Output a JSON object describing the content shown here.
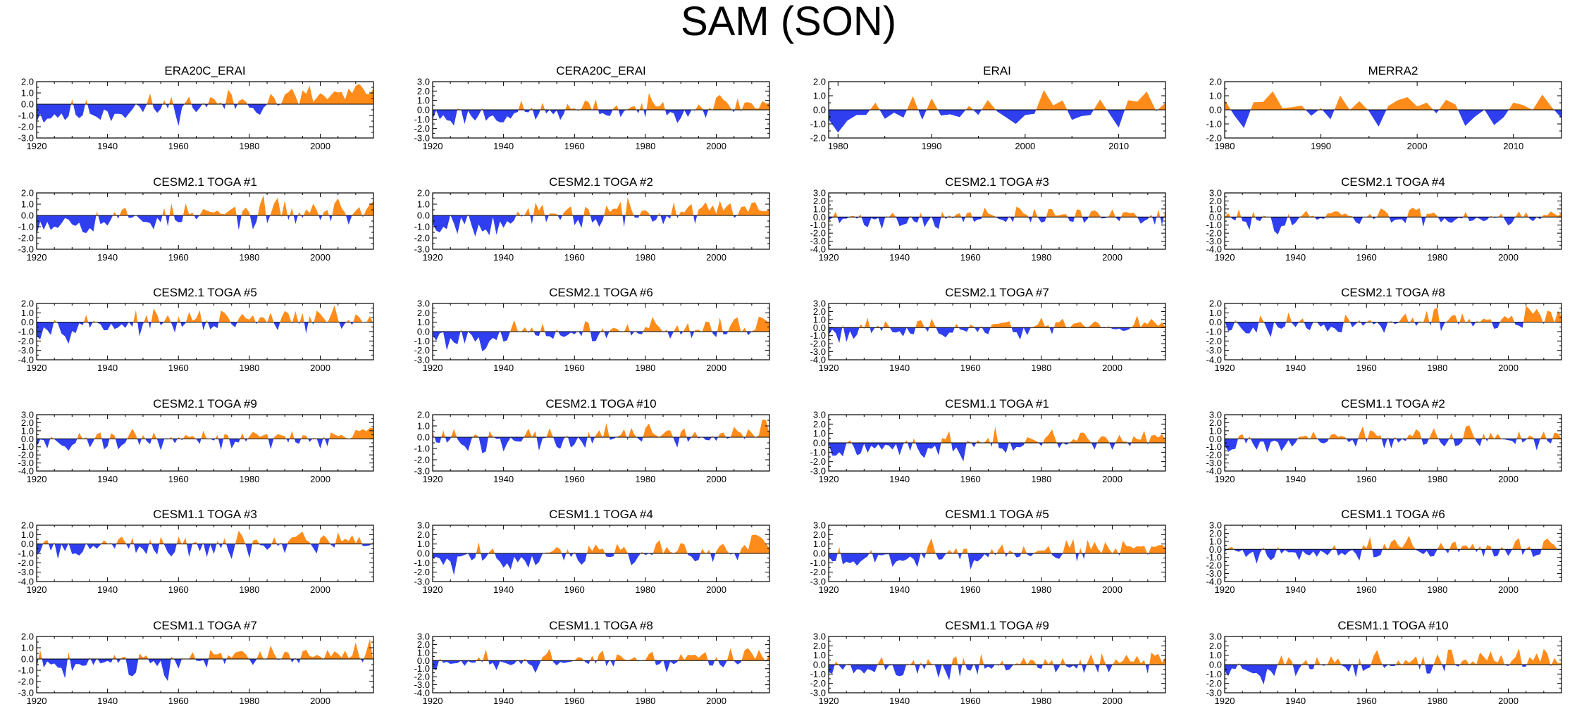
{
  "title": "SAM (SON)",
  "colors": {
    "positive": "#ff8c1a",
    "negative": "#2f3ff0",
    "axis": "#000000"
  },
  "chart_data": [
    {
      "type": "area",
      "title": "ERA20C_ERAI",
      "xlim": [
        1920,
        2015
      ],
      "x_ticks": [
        1920,
        1940,
        1960,
        1980,
        2000
      ],
      "y_ticks": [
        2.0,
        1.0,
        0.0,
        -1.0,
        -2.0,
        -3.0
      ],
      "ylim": [
        -3.0,
        2.0
      ],
      "y_tick_labels": [
        "2.0",
        "1.0",
        "0.0",
        "-1.0",
        "-2.0",
        "-3.0"
      ],
      "seed": 11,
      "bias": 0.8
    },
    {
      "type": "area",
      "title": "CERA20C_ERAI",
      "xlim": [
        1920,
        2015
      ],
      "x_ticks": [
        1920,
        1940,
        1960,
        1980,
        2000
      ],
      "y_ticks": [
        3.0,
        2.0,
        1.0,
        0.0,
        -1.0,
        -2.0,
        -3.0
      ],
      "ylim": [
        -3.0,
        3.0
      ],
      "y_tick_labels": [
        "3.0",
        "2.0",
        "1.0",
        "0.0",
        "-1.0",
        "-2.0",
        "-3.0"
      ],
      "seed": 23,
      "bias": 0.6
    },
    {
      "type": "area",
      "title": "ERAI",
      "xlim": [
        1979,
        2015
      ],
      "x_ticks": [
        1980,
        1990,
        2000,
        2010
      ],
      "y_ticks": [
        2.0,
        1.0,
        0.0,
        -1.0,
        -2.0
      ],
      "ylim": [
        -2.0,
        2.0
      ],
      "y_tick_labels": [
        "2.0",
        "1.0",
        "0.0",
        "-1.0",
        "-2.0"
      ],
      "seed": 37,
      "bias": 0.1
    },
    {
      "type": "area",
      "title": "MERRA2",
      "xlim": [
        1980,
        2015
      ],
      "x_ticks": [
        1980,
        1990,
        2000,
        2010
      ],
      "y_ticks": [
        2.0,
        1.0,
        0.0,
        -1.0,
        -2.0
      ],
      "ylim": [
        -2.0,
        2.0
      ],
      "y_tick_labels": [
        "2.0",
        "1.0",
        "0.0",
        "-1.0",
        "-2.0"
      ],
      "seed": 41,
      "bias": 0.1
    },
    {
      "type": "area",
      "title": "CESM2.1 TOGA #1",
      "xlim": [
        1920,
        2015
      ],
      "x_ticks": [
        1920,
        1940,
        1960,
        1980,
        2000
      ],
      "y_ticks": [
        2.0,
        1.0,
        0.0,
        -1.0,
        -2.0,
        -3.0
      ],
      "ylim": [
        -3.0,
        2.0
      ],
      "y_tick_labels": [
        "2.0",
        "1.0",
        "0.0",
        "-1.0",
        "-2.0",
        "-3.0"
      ],
      "seed": 53,
      "bias": 0.4
    },
    {
      "type": "area",
      "title": "CESM2.1 TOGA #2",
      "xlim": [
        1920,
        2015
      ],
      "x_ticks": [
        1920,
        1940,
        1960,
        1980,
        2000
      ],
      "y_ticks": [
        2.0,
        1.0,
        0.0,
        -1.0,
        -2.0,
        -3.0
      ],
      "ylim": [
        -3.0,
        2.0
      ],
      "y_tick_labels": [
        "2.0",
        "1.0",
        "0.0",
        "-1.0",
        "-2.0",
        "-3.0"
      ],
      "seed": 67,
      "bias": 0.5
    },
    {
      "type": "area",
      "title": "CESM2.1 TOGA #3",
      "xlim": [
        1920,
        2015
      ],
      "x_ticks": [
        1920,
        1940,
        1960,
        1980,
        2000
      ],
      "y_ticks": [
        3.0,
        2.0,
        1.0,
        0.0,
        -1.0,
        -2.0,
        -3.0,
        -4.0
      ],
      "ylim": [
        -4.0,
        3.0
      ],
      "y_tick_labels": [
        "3.0",
        "2.0",
        "1.0",
        "0.0",
        "-1.0",
        "-2.0",
        "-3.0",
        "-4.0"
      ],
      "seed": 71,
      "bias": 0.3
    },
    {
      "type": "area",
      "title": "CESM2.1 TOGA #4",
      "xlim": [
        1920,
        2015
      ],
      "x_ticks": [
        1920,
        1940,
        1960,
        1980,
        2000
      ],
      "y_ticks": [
        3.0,
        2.0,
        1.0,
        0.0,
        -1.0,
        -2.0,
        -3.0,
        -4.0
      ],
      "ylim": [
        -4.0,
        3.0
      ],
      "y_tick_labels": [
        "3.0",
        "2.0",
        "1.0",
        "0.0",
        "-1.0",
        "-2.0",
        "-3.0",
        "-4.0"
      ],
      "seed": 83,
      "bias": 0.3
    },
    {
      "type": "area",
      "title": "CESM2.1 TOGA #5",
      "xlim": [
        1920,
        2015
      ],
      "x_ticks": [
        1920,
        1940,
        1960,
        1980,
        2000
      ],
      "y_ticks": [
        2.0,
        1.0,
        0.0,
        -1.0,
        -2.0,
        -3.0,
        -4.0
      ],
      "ylim": [
        -4.0,
        2.0
      ],
      "y_tick_labels": [
        "2.0",
        "1.0",
        "0.0",
        "-1.0",
        "-2.0",
        "-3.0",
        "-4.0"
      ],
      "seed": 97,
      "bias": 0.3
    },
    {
      "type": "area",
      "title": "CESM2.1 TOGA #6",
      "xlim": [
        1920,
        2015
      ],
      "x_ticks": [
        1920,
        1940,
        1960,
        1980,
        2000
      ],
      "y_ticks": [
        3.0,
        2.0,
        1.0,
        0.0,
        -1.0,
        -2.0,
        -3.0
      ],
      "ylim": [
        -3.0,
        3.0
      ],
      "y_tick_labels": [
        "3.0",
        "2.0",
        "1.0",
        "0.0",
        "-1.0",
        "-2.0",
        "-3.0"
      ],
      "seed": 101,
      "bias": 0.6
    },
    {
      "type": "area",
      "title": "CESM2.1 TOGA #7",
      "xlim": [
        1920,
        2015
      ],
      "x_ticks": [
        1920,
        1940,
        1960,
        1980,
        2000
      ],
      "y_ticks": [
        3.0,
        2.0,
        1.0,
        0.0,
        -1.0,
        -2.0,
        -3.0,
        -4.0
      ],
      "ylim": [
        -4.0,
        3.0
      ],
      "y_tick_labels": [
        "3.0",
        "2.0",
        "1.0",
        "0.0",
        "-1.0",
        "-2.0",
        "-3.0",
        "-4.0"
      ],
      "seed": 113,
      "bias": 0.3
    },
    {
      "type": "area",
      "title": "CESM2.1 TOGA #8",
      "xlim": [
        1920,
        2015
      ],
      "x_ticks": [
        1920,
        1940,
        1960,
        1980,
        2000
      ],
      "y_ticks": [
        2.0,
        1.0,
        0.0,
        -1.0,
        -2.0,
        -3.0,
        -4.0
      ],
      "ylim": [
        -4.0,
        2.0
      ],
      "y_tick_labels": [
        "2.0",
        "1.0",
        "0.0",
        "-1.0",
        "-2.0",
        "-3.0",
        "-4.0"
      ],
      "seed": 127,
      "bias": 0.3
    },
    {
      "type": "area",
      "title": "CESM2.1 TOGA #9",
      "xlim": [
        1920,
        2015
      ],
      "x_ticks": [
        1920,
        1940,
        1960,
        1980,
        2000
      ],
      "y_ticks": [
        3.0,
        2.0,
        1.0,
        0.0,
        -1.0,
        -2.0,
        -3.0,
        -4.0
      ],
      "ylim": [
        -4.0,
        3.0
      ],
      "y_tick_labels": [
        "3.0",
        "2.0",
        "1.0",
        "0.0",
        "-1.0",
        "-2.0",
        "-3.0",
        "-4.0"
      ],
      "seed": 131,
      "bias": 0.3
    },
    {
      "type": "area",
      "title": "CESM2.1 TOGA #10",
      "xlim": [
        1920,
        2015
      ],
      "x_ticks": [
        1920,
        1940,
        1960,
        1980,
        2000
      ],
      "y_ticks": [
        2.0,
        1.0,
        0.0,
        -1.0,
        -2.0,
        -3.0
      ],
      "ylim": [
        -3.0,
        2.0
      ],
      "y_tick_labels": [
        "2.0",
        "1.0",
        "0.0",
        "-1.0",
        "-2.0",
        "-3.0"
      ],
      "seed": 139,
      "bias": 0.4
    },
    {
      "type": "area",
      "title": "CESM1.1 TOGA #1",
      "xlim": [
        1920,
        2015
      ],
      "x_ticks": [
        1920,
        1940,
        1960,
        1980,
        2000
      ],
      "y_ticks": [
        3.0,
        2.0,
        1.0,
        0.0,
        -1.0,
        -2.0,
        -3.0
      ],
      "ylim": [
        -3.0,
        3.0
      ],
      "y_tick_labels": [
        "3.0",
        "2.0",
        "1.0",
        "0.0",
        "-1.0",
        "-2.0",
        "-3.0"
      ],
      "seed": 149,
      "bias": 0.6
    },
    {
      "type": "area",
      "title": "CESM1.1 TOGA #2",
      "xlim": [
        1920,
        2015
      ],
      "x_ticks": [
        1920,
        1940,
        1960,
        1980,
        2000
      ],
      "y_ticks": [
        3.0,
        2.0,
        1.0,
        0.0,
        -1.0,
        -2.0,
        -3.0,
        -4.0
      ],
      "ylim": [
        -4.0,
        3.0
      ],
      "y_tick_labels": [
        "3.0",
        "2.0",
        "1.0",
        "0.0",
        "-1.0",
        "-2.0",
        "-3.0",
        "-4.0"
      ],
      "seed": 157,
      "bias": 0.3
    },
    {
      "type": "area",
      "title": "CESM1.1 TOGA #3",
      "xlim": [
        1920,
        2015
      ],
      "x_ticks": [
        1920,
        1940,
        1960,
        1980,
        2000
      ],
      "y_ticks": [
        2.0,
        1.0,
        0.0,
        -1.0,
        -2.0,
        -3.0,
        -4.0
      ],
      "ylim": [
        -4.0,
        2.0
      ],
      "y_tick_labels": [
        "2.0",
        "1.0",
        "0.0",
        "-1.0",
        "-2.0",
        "-3.0",
        "-4.0"
      ],
      "seed": 163,
      "bias": 0.3
    },
    {
      "type": "area",
      "title": "CESM1.1 TOGA #4",
      "xlim": [
        1920,
        2015
      ],
      "x_ticks": [
        1920,
        1940,
        1960,
        1980,
        2000
      ],
      "y_ticks": [
        3.0,
        2.0,
        1.0,
        0.0,
        -1.0,
        -2.0,
        -3.0
      ],
      "ylim": [
        -3.0,
        3.0
      ],
      "y_tick_labels": [
        "3.0",
        "2.0",
        "1.0",
        "0.0",
        "-1.0",
        "-2.0",
        "-3.0"
      ],
      "seed": 173,
      "bias": 0.6
    },
    {
      "type": "area",
      "title": "CESM1.1 TOGA #5",
      "xlim": [
        1920,
        2015
      ],
      "x_ticks": [
        1920,
        1940,
        1960,
        1980,
        2000
      ],
      "y_ticks": [
        3.0,
        2.0,
        1.0,
        0.0,
        -1.0,
        -2.0,
        -3.0
      ],
      "ylim": [
        -3.0,
        3.0
      ],
      "y_tick_labels": [
        "3.0",
        "2.0",
        "1.0",
        "0.0",
        "-1.0",
        "-2.0",
        "-3.0"
      ],
      "seed": 181,
      "bias": 0.6
    },
    {
      "type": "area",
      "title": "CESM1.1 TOGA #6",
      "xlim": [
        1920,
        2015
      ],
      "x_ticks": [
        1920,
        1940,
        1960,
        1980,
        2000
      ],
      "y_ticks": [
        3.0,
        2.0,
        1.0,
        0.0,
        -1.0,
        -2.0,
        -3.0,
        -4.0
      ],
      "ylim": [
        -4.0,
        3.0
      ],
      "y_tick_labels": [
        "3.0",
        "2.0",
        "1.0",
        "0.0",
        "-1.0",
        "-2.0",
        "-3.0",
        "-4.0"
      ],
      "seed": 191,
      "bias": 0.3
    },
    {
      "type": "area",
      "title": "CESM1.1 TOGA #7",
      "xlim": [
        1920,
        2015
      ],
      "x_ticks": [
        1920,
        1940,
        1960,
        1980,
        2000
      ],
      "y_ticks": [
        2.0,
        1.0,
        0.0,
        -1.0,
        -2.0,
        -3.0
      ],
      "ylim": [
        -3.0,
        2.0
      ],
      "y_tick_labels": [
        "2.0",
        "1.0",
        "0.0",
        "-1.0",
        "-2.0",
        "-3.0"
      ],
      "seed": 197,
      "bias": 0.4
    },
    {
      "type": "area",
      "title": "CESM1.1 TOGA #8",
      "xlim": [
        1920,
        2015
      ],
      "x_ticks": [
        1920,
        1940,
        1960,
        1980,
        2000
      ],
      "y_ticks": [
        3.0,
        2.0,
        1.0,
        0.0,
        -1.0,
        -2.0,
        -3.0,
        -4.0
      ],
      "ylim": [
        -4.0,
        3.0
      ],
      "y_tick_labels": [
        "3.0",
        "2.0",
        "1.0",
        "0.0",
        "-1.0",
        "-2.0",
        "-3.0",
        "-4.0"
      ],
      "seed": 211,
      "bias": 0.3
    },
    {
      "type": "area",
      "title": "CESM1.1 TOGA #9",
      "xlim": [
        1920,
        2015
      ],
      "x_ticks": [
        1920,
        1940,
        1960,
        1980,
        2000
      ],
      "y_ticks": [
        3.0,
        2.0,
        1.0,
        0.0,
        -1.0,
        -2.0,
        -3.0
      ],
      "ylim": [
        -3.0,
        3.0
      ],
      "y_tick_labels": [
        "3.0",
        "2.0",
        "1.0",
        "0.0",
        "-1.0",
        "-2.0",
        "-3.0"
      ],
      "seed": 223,
      "bias": 0.6
    },
    {
      "type": "area",
      "title": "CESM1.1 TOGA #10",
      "xlim": [
        1920,
        2015
      ],
      "x_ticks": [
        1920,
        1940,
        1960,
        1980,
        2000
      ],
      "y_ticks": [
        3.0,
        2.0,
        1.0,
        0.0,
        -1.0,
        -2.0,
        -3.0
      ],
      "ylim": [
        -3.0,
        3.0
      ],
      "y_tick_labels": [
        "3.0",
        "2.0",
        "1.0",
        "0.0",
        "-1.0",
        "-2.0",
        "-3.0"
      ],
      "seed": 227,
      "bias": 0.6
    }
  ]
}
